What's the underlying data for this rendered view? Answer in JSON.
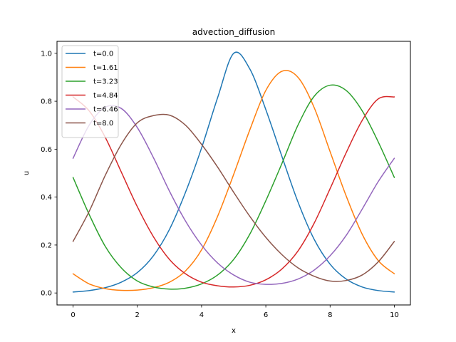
{
  "chart_data": {
    "type": "line",
    "title": "advection_diffusion",
    "xlabel": "x",
    "ylabel": "u",
    "xlim": [
      -0.5,
      10.5
    ],
    "ylim": [
      -0.05,
      1.05
    ],
    "xticks": [
      0,
      2,
      4,
      6,
      8,
      10
    ],
    "xtick_labels": [
      "0",
      "2",
      "4",
      "6",
      "8",
      "10"
    ],
    "yticks": [
      0.0,
      0.2,
      0.4,
      0.6,
      0.8,
      1.0
    ],
    "ytick_labels": [
      "0.0",
      "0.2",
      "0.4",
      "0.6",
      "0.8",
      "1.0"
    ],
    "grid": false,
    "legend_position": "top-left",
    "x": [
      0,
      0.5,
      1,
      1.5,
      2,
      2.5,
      3,
      3.5,
      4,
      4.5,
      5,
      5.5,
      6,
      6.5,
      7,
      7.5,
      8,
      8.5,
      9,
      9.5,
      10
    ],
    "series": [
      {
        "name": "t=0.0",
        "color": "#1f77b4",
        "values": [
          0.004,
          0.01,
          0.022,
          0.045,
          0.085,
          0.155,
          0.265,
          0.42,
          0.605,
          0.815,
          1.0,
          0.935,
          0.765,
          0.57,
          0.38,
          0.225,
          0.12,
          0.058,
          0.025,
          0.01,
          0.004
        ]
      },
      {
        "name": "t=1.61",
        "color": "#ff7f0e",
        "values": [
          0.08,
          0.038,
          0.018,
          0.011,
          0.012,
          0.022,
          0.045,
          0.092,
          0.18,
          0.32,
          0.495,
          0.68,
          0.845,
          0.925,
          0.9,
          0.775,
          0.59,
          0.405,
          0.245,
          0.135,
          0.08
        ]
      },
      {
        "name": "t=3.23",
        "color": "#2ca02c",
        "values": [
          0.482,
          0.328,
          0.195,
          0.105,
          0.05,
          0.025,
          0.016,
          0.02,
          0.038,
          0.075,
          0.14,
          0.245,
          0.385,
          0.54,
          0.7,
          0.82,
          0.867,
          0.845,
          0.76,
          0.63,
          0.482
        ]
      },
      {
        "name": "t=4.84",
        "color": "#d62728",
        "values": [
          0.818,
          0.76,
          0.65,
          0.505,
          0.36,
          0.235,
          0.14,
          0.08,
          0.045,
          0.03,
          0.025,
          0.032,
          0.055,
          0.1,
          0.175,
          0.29,
          0.435,
          0.585,
          0.72,
          0.81,
          0.818
        ]
      },
      {
        "name": "t=6.46",
        "color": "#9467bd",
        "values": [
          0.562,
          0.7,
          0.775,
          0.77,
          0.69,
          0.565,
          0.425,
          0.3,
          0.2,
          0.125,
          0.075,
          0.045,
          0.036,
          0.04,
          0.058,
          0.095,
          0.155,
          0.24,
          0.35,
          0.465,
          0.562
        ]
      },
      {
        "name": "t=8.0",
        "color": "#8c564b",
        "values": [
          0.215,
          0.34,
          0.49,
          0.62,
          0.71,
          0.74,
          0.742,
          0.7,
          0.62,
          0.525,
          0.42,
          0.32,
          0.232,
          0.16,
          0.105,
          0.07,
          0.05,
          0.052,
          0.075,
          0.13,
          0.215
        ]
      }
    ]
  }
}
